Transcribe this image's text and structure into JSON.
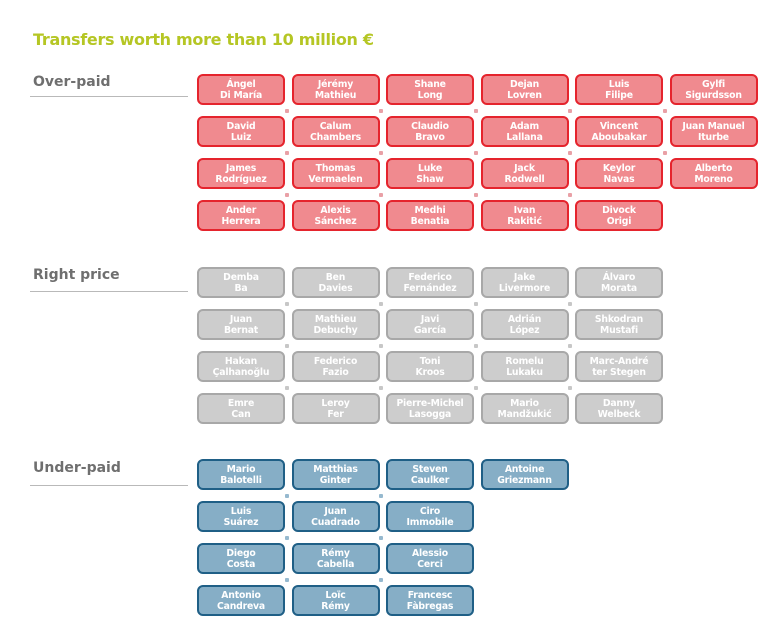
{
  "title": "Transfers worth more than 10 million €",
  "colors": {
    "title": "#b5c624",
    "over_fill": "#f08a8f",
    "over_border": "#e5242d",
    "right_fill": "#cdcdcd",
    "right_border": "#a8a8a8",
    "under_fill": "#86aec6",
    "under_border": "#1f5f86"
  },
  "sections": [
    {
      "key": "over",
      "label": "Over-paid",
      "players": [
        "Ángel\nDi María",
        "Jérémy\nMathieu",
        "Shane\nLong",
        "Dejan\nLovren",
        "Luis\nFilipe",
        "Gylfi\nSigurdsson",
        "David\nLuiz",
        "Calum\nChambers",
        "Claudio\nBravo",
        "Adam\nLallana",
        "Vincent\nAboubakar",
        "Juan Manuel\nIturbe",
        "James\nRodríguez",
        "Thomas\nVermaelen",
        "Luke\nShaw",
        "Jack\nRodwell",
        "Keylor\nNavas",
        "Alberto\nMoreno",
        "Ander\nHerrera",
        "Alexis\nSánchez",
        "Medhi\nBenatia",
        "Ivan\nRakitić",
        "Divock\nOrigi"
      ]
    },
    {
      "key": "right",
      "label": "Right price",
      "players": [
        "Demba\nBa",
        "Ben\nDavies",
        "Federico\nFernández",
        "Jake\nLivermore",
        "Álvaro\nMorata",
        "Juan\nBernat",
        "Mathieu\nDebuchy",
        "Javi\nGarcía",
        "Adrián\nLópez",
        "Shkodran\nMustafi",
        "Hakan\nÇalhanoğlu",
        "Federico\nFazio",
        "Toni\nKroos",
        "Romelu\nLukaku",
        "Marc-André\nter Stegen",
        "Emre\nCan",
        "Leroy\nFer",
        "Pierre-Michel\nLasogga",
        "Mario\nMandžukić",
        "Danny\nWelbeck"
      ]
    },
    {
      "key": "under",
      "label": "Under-paid",
      "players": [
        "Mario\nBalotelli",
        "Matthias\nGinter",
        "Steven\nCaulker",
        "Antoine\nGriezmann",
        "Luis\nSuárez",
        "Juan\nCuadrado",
        "Ciro\nImmobile",
        "Diego\nCosta",
        "Rémy\nCabella",
        "Alessio\nCerci",
        "Antonio\nCandreva",
        "Loïc\nRémy",
        "Francesc\nFàbregas"
      ]
    }
  ]
}
